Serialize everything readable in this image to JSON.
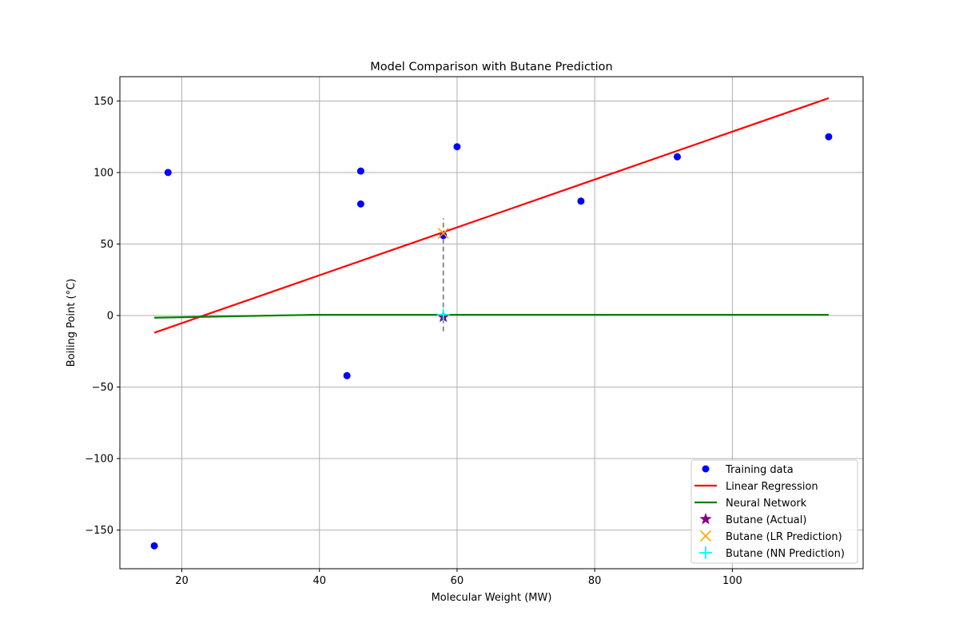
{
  "chart_data": {
    "type": "scatter",
    "title": "Model Comparison with Butane Prediction",
    "xlabel": "Molecular Weight (MW)",
    "ylabel": "Boiling Point (°C)",
    "xlim": [
      11,
      119
    ],
    "ylim": [
      -177,
      167
    ],
    "xticks": [
      20,
      40,
      60,
      80,
      100
    ],
    "yticks": [
      -150,
      -100,
      -50,
      0,
      50,
      100,
      150
    ],
    "grid": true,
    "legend_position": "lower right",
    "training_data": {
      "name": "Training data",
      "color": "#0000ff",
      "points": [
        {
          "x": 16,
          "y": -161
        },
        {
          "x": 18,
          "y": 100
        },
        {
          "x": 44,
          "y": -42
        },
        {
          "x": 46,
          "y": 78
        },
        {
          "x": 46,
          "y": 101
        },
        {
          "x": 58,
          "y": 56
        },
        {
          "x": 60,
          "y": 118
        },
        {
          "x": 78,
          "y": 80
        },
        {
          "x": 92,
          "y": 111
        },
        {
          "x": 114,
          "y": 125
        }
      ]
    },
    "linear_regression": {
      "name": "Linear Regression",
      "color": "#ff0000",
      "x": [
        16,
        114
      ],
      "y": [
        -12,
        152
      ]
    },
    "neural_network": {
      "name": "Neural Network",
      "color": "#008000",
      "x": [
        16,
        39,
        58,
        114
      ],
      "y": [
        -1.5,
        0.5,
        0.5,
        0.5
      ]
    },
    "butane_actual": {
      "name": "Butane (Actual)",
      "color": "#800080",
      "x": 58,
      "y": -1
    },
    "butane_lr": {
      "name": "Butane (LR Prediction)",
      "color": "#ffa500",
      "x": 58,
      "y": 57.5
    },
    "butane_nn": {
      "name": "Butane (NN Prediction)",
      "color": "#00ffff",
      "x": 58,
      "y": 0.5
    },
    "error_line": {
      "color": "#808080",
      "x": 58,
      "y": [
        -11,
        68
      ]
    }
  }
}
